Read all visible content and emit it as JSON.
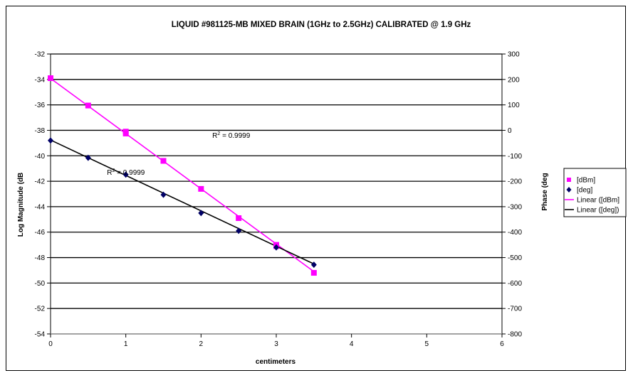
{
  "chart_data": {
    "type": "scatter",
    "title": "LIQUID #981125-MB MIXED BRAIN (1GHz to 2.5GHz) CALIBRATED @ 1.9 GHz",
    "xlabel": "centimeters",
    "ylabel_left": "Log Magnitude (dB",
    "ylabel_right": "Phase (deg",
    "xlim": [
      0,
      6
    ],
    "ylim_left": [
      -54,
      -32
    ],
    "ylim_right": [
      -800,
      300
    ],
    "x_ticks": [
      "0",
      "1",
      "2",
      "3",
      "4",
      "5",
      "6"
    ],
    "y_left_ticks": [
      "-32",
      "-34",
      "-36",
      "-38",
      "-40",
      "-42",
      "-44",
      "-46",
      "-48",
      "-50",
      "-52",
      "-54"
    ],
    "y_right_ticks": [
      "300",
      "200",
      "100",
      "0",
      "-100",
      "-200",
      "-300",
      "-400",
      "-500",
      "-600",
      "-700",
      "-800"
    ],
    "grid": "horizontal",
    "legend_position": "right",
    "series": [
      {
        "name": "[dBm]",
        "axis": "left",
        "color": "#ff00ff",
        "marker": "square",
        "x": [
          0,
          0.5,
          1.0,
          1.0,
          1.5,
          2.0,
          2.5,
          3.0,
          3.0,
          3.5
        ],
        "y": [
          -33.9,
          -36.05,
          -38.1,
          -38.25,
          -40.4,
          -42.6,
          -44.9,
          -47.0,
          -47.1,
          -49.2
        ]
      },
      {
        "name": "[deg]",
        "axis": "right",
        "color": "#000066",
        "marker": "diamond",
        "x": [
          0,
          0.5,
          1.0,
          1.5,
          2.0,
          2.5,
          3.0,
          3.5
        ],
        "y": [
          -40,
          -108,
          -174,
          -253,
          -325,
          -395,
          -460,
          -528
        ]
      }
    ],
    "trendlines": [
      {
        "name": "Linear ([dBm]",
        "axis": "left",
        "color": "#ff00ff",
        "x": [
          0,
          3.5
        ],
        "y": [
          -33.92,
          -49.1
        ]
      },
      {
        "name": "Linear ([deg])",
        "axis": "right",
        "color": "#000000",
        "x": [
          0,
          3.5
        ],
        "y": [
          -38,
          -525
        ]
      }
    ],
    "annotations": [
      {
        "prefix": "R",
        "sup": "2",
        "text": " = 0.9999",
        "x": 2.15,
        "y": -38.6,
        "axis": "left"
      },
      {
        "prefix": "R",
        "sup": "2",
        "text": " = 0.9999",
        "x": 0.75,
        "y": -41.5,
        "axis": "left"
      }
    ]
  }
}
